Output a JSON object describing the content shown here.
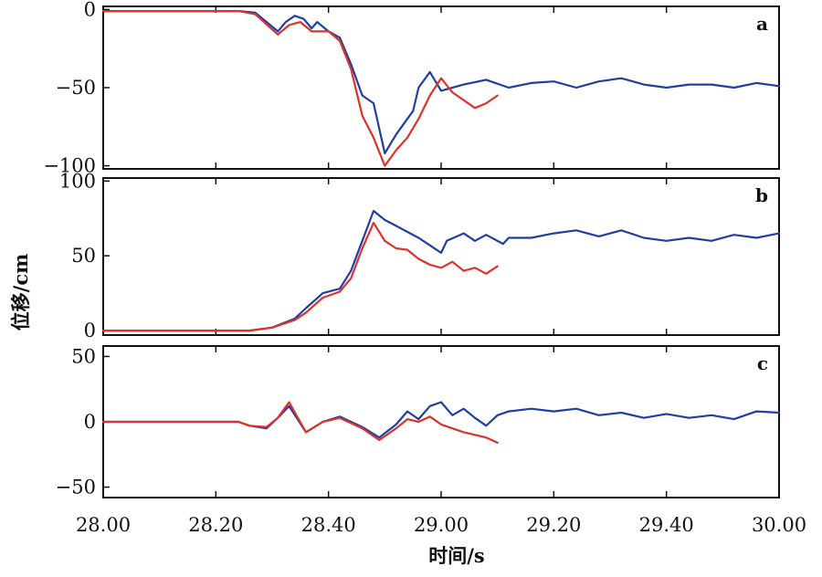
{
  "chart_data": {
    "type": "line",
    "ylabel": "位移/cm",
    "xlabel": "时间/s",
    "x_ticks": [
      "28.00",
      "28.20",
      "28.40",
      "29.00",
      "29.20",
      "29.40",
      "30.00"
    ],
    "xlim": [
      0,
      6
    ],
    "grid": false,
    "colors": {
      "blue": "#1f3ea6",
      "red": "#e0302a"
    },
    "panels": [
      {
        "label": "a",
        "ylim": [
          -102,
          2
        ],
        "y_ticks": [
          0,
          -50,
          -100
        ],
        "y_tick_labels": [
          "0",
          "−50",
          "−100"
        ],
        "series": [
          {
            "color": "blue",
            "x": [
              0,
              0.8,
              1.2,
              1.35,
              1.55,
              1.62,
              1.7,
              1.78,
              1.85,
              1.9,
              2.0,
              2.1,
              2.2,
              2.3,
              2.4,
              2.5,
              2.6,
              2.7,
              2.75,
              2.8,
              2.9,
              3.0,
              3.2,
              3.4,
              3.6,
              3.8,
              4.0,
              4.2,
              4.4,
              4.6,
              4.8,
              5.0,
              5.2,
              5.4,
              5.6,
              5.8,
              6.0
            ],
            "y": [
              -1,
              -1,
              -1,
              -2,
              -14,
              -8,
              -4,
              -6,
              -12,
              -8,
              -14,
              -18,
              -35,
              -55,
              -60,
              -92,
              -80,
              -70,
              -65,
              -50,
              -40,
              -52,
              -48,
              -45,
              -50,
              -47,
              -46,
              -50,
              -46,
              -44,
              -48,
              -50,
              -48,
              -48,
              -50,
              -47,
              -49
            ]
          },
          {
            "color": "red",
            "x": [
              0,
              0.8,
              1.2,
              1.35,
              1.55,
              1.65,
              1.75,
              1.85,
              2.0,
              2.1,
              2.2,
              2.3,
              2.4,
              2.5,
              2.6,
              2.7,
              2.8,
              2.9,
              3.0,
              3.1,
              3.2,
              3.3,
              3.4,
              3.5
            ],
            "y": [
              -1,
              -1,
              -1,
              -3,
              -16,
              -10,
              -8,
              -14,
              -14,
              -20,
              -38,
              -68,
              -82,
              -100,
              -90,
              -82,
              -70,
              -55,
              -44,
              -53,
              -58,
              -63,
              -60,
              -55
            ]
          }
        ]
      },
      {
        "label": "b",
        "ylim": [
          -3,
          102
        ],
        "y_ticks": [
          100,
          50,
          0
        ],
        "y_tick_labels": [
          "100",
          "50",
          "0"
        ],
        "series": [
          {
            "color": "blue",
            "x": [
              0,
              1,
              1.3,
              1.5,
              1.7,
              1.8,
              1.95,
              2.1,
              2.2,
              2.3,
              2.4,
              2.5,
              2.6,
              2.8,
              2.9,
              3.0,
              3.05,
              3.2,
              3.3,
              3.4,
              3.55,
              3.6,
              3.8,
              4.0,
              4.2,
              4.4,
              4.6,
              4.8,
              5.0,
              5.2,
              5.4,
              5.6,
              5.8,
              6.0
            ],
            "y": [
              0,
              0,
              0,
              2,
              8,
              15,
              25,
              28,
              40,
              60,
              80,
              74,
              70,
              62,
              57,
              52,
              60,
              65,
              60,
              64,
              58,
              62,
              62,
              65,
              67,
              63,
              67,
              62,
              60,
              62,
              60,
              64,
              62,
              65
            ]
          },
          {
            "color": "red",
            "x": [
              0,
              1,
              1.3,
              1.5,
              1.7,
              1.8,
              1.95,
              2.1,
              2.2,
              2.3,
              2.4,
              2.5,
              2.6,
              2.7,
              2.8,
              2.9,
              3.0,
              3.1,
              3.2,
              3.3,
              3.4,
              3.5
            ],
            "y": [
              0,
              0,
              0,
              2,
              7,
              12,
              22,
              26,
              35,
              55,
              72,
              60,
              55,
              54,
              48,
              44,
              42,
              46,
              40,
              42,
              38,
              43
            ]
          }
        ]
      },
      {
        "label": "c",
        "ylim": [
          -58,
          58
        ],
        "y_ticks": [
          50,
          0,
          -50
        ],
        "y_tick_labels": [
          "50",
          "0",
          "−50"
        ],
        "series": [
          {
            "color": "blue",
            "x": [
              0,
              0.6,
              1.2,
              1.3,
              1.45,
              1.55,
              1.65,
              1.8,
              1.95,
              2.1,
              2.3,
              2.45,
              2.6,
              2.7,
              2.8,
              2.9,
              3.0,
              3.1,
              3.2,
              3.3,
              3.4,
              3.5,
              3.6,
              3.8,
              4.0,
              4.2,
              4.4,
              4.6,
              4.8,
              5.0,
              5.2,
              5.4,
              5.6,
              5.8,
              6.0
            ],
            "y": [
              0,
              0,
              0,
              -3,
              -5,
              3,
              12,
              -8,
              0,
              4,
              -4,
              -12,
              -2,
              8,
              2,
              12,
              15,
              5,
              10,
              3,
              -3,
              5,
              8,
              10,
              8,
              10,
              5,
              7,
              3,
              6,
              3,
              5,
              2,
              8,
              7
            ]
          },
          {
            "color": "red",
            "x": [
              0,
              0.6,
              1.2,
              1.3,
              1.45,
              1.55,
              1.65,
              1.8,
              1.95,
              2.1,
              2.3,
              2.45,
              2.6,
              2.7,
              2.8,
              2.9,
              3.0,
              3.1,
              3.2,
              3.3,
              3.4,
              3.5
            ],
            "y": [
              0,
              0,
              0,
              -3,
              -4,
              3,
              15,
              -8,
              0,
              3,
              -5,
              -14,
              -5,
              2,
              0,
              4,
              -2,
              -5,
              -8,
              -10,
              -12,
              -16
            ]
          }
        ]
      }
    ]
  }
}
